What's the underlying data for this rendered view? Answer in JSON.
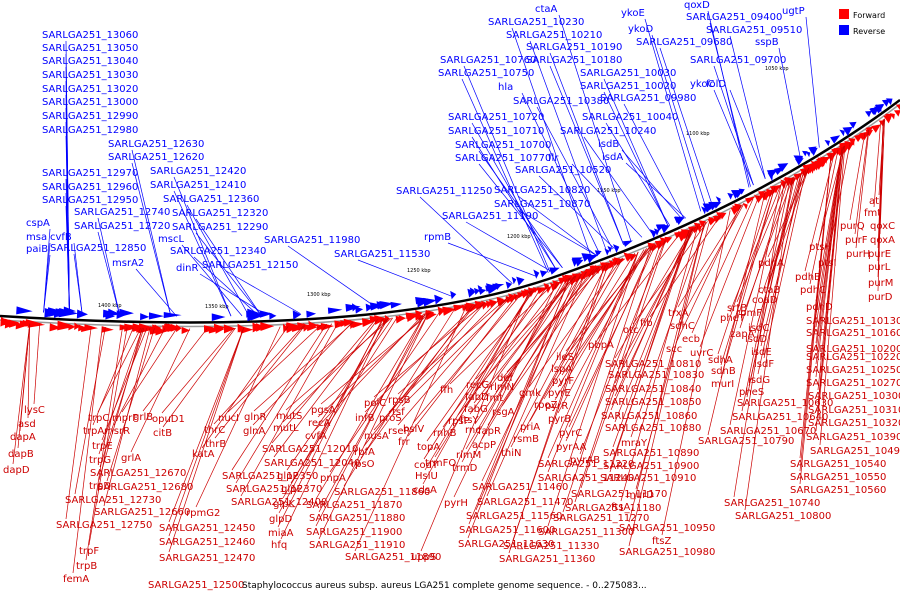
{
  "legend": {
    "forward": "Forward",
    "reverse": "Reverse"
  },
  "colors": {
    "forward": "#ff0000",
    "reverse": "#0000ff",
    "backbone": "#000000"
  },
  "caption": "Staphylococcus aureus subsp. aureus LGA251 complete genome sequence. - 0..275083...",
  "bottom_label": "SARLGA251_12500",
  "ticks": [
    "1400 kbp",
    "1350 kbp",
    "1300 kbp",
    "1250 kbp",
    "1200 kbp",
    "1150 kbp",
    "1100 kbp",
    "1050 kbp"
  ],
  "reverse_labels": [
    "SARLGA251_13060",
    "SARLGA251_13050",
    "SARLGA251_13040",
    "SARLGA251_13030",
    "SARLGA251_13020",
    "SARLGA251_13000",
    "SARLGA251_12990",
    "SARLGA251_12980",
    "SARLGA251_12630",
    "SARLGA251_12620",
    "SARLGA251_12970",
    "SARLGA251_12420",
    "SARLGA251_12960",
    "SARLGA251_12410",
    "SARLGA251_12950",
    "SARLGA251_12360",
    "SARLGA251_12740",
    "SARLGA251_12320",
    "SARLGA251_12720",
    "SARLGA251_12290",
    "cspA",
    "msa",
    "paiB",
    "cvfB",
    "SARLGA251_12850",
    "msrA2",
    "mscL",
    "SARLGA251_12340",
    "dinR",
    "SARLGA251_12150",
    "SARLGA251_11980",
    "SARLGA251_11530",
    "rpmB",
    "ctaA",
    "SARLGA251_10230",
    "SARLGA251_10210",
    "SARLGA251_10760",
    "SARLGA251_10190",
    "SARLGA251_10750",
    "SARLGA251_10180",
    "hla",
    "SARLGA251_10380",
    "SARLGA251_10030",
    "SARLGA251_10020",
    "SARLGA251_09980",
    "SARLGA251_10720",
    "SARLGA251_10710",
    "SARLGA251_10700",
    "SARLGA251_10770",
    "flr",
    "SARLGA251_10520",
    "SARLGA251_10040",
    "SARLGA251_10240",
    "isdB",
    "isdA",
    "SARLGA251_11250",
    "SARLGA251_10820",
    "SARLGA251_10870",
    "SARLGA251_11190",
    "ykoE",
    "qoxD",
    "SARLGA251_09400",
    "ugtP",
    "ykoD",
    "SARLGA251_09510",
    "SARLGA251_09680",
    "sspB",
    "SARLGA251_09700",
    "ykoC",
    "folD"
  ],
  "forward_labels": [
    "atl",
    "fmt",
    "purQ",
    "qoxC",
    "purF",
    "qoxA",
    "ptsH",
    "purH",
    "purE",
    "ptsI",
    "purL",
    "pdhA",
    "purM",
    "pdhB",
    "purD",
    "pdhC",
    "ctaB",
    "coaD",
    "pdhD",
    "srtB",
    "rpmF",
    "SARLGA251_10130",
    "SARLGA251_10160",
    "SARLGA251_10200",
    "SARLGA251_10220",
    "SARLGA251_10250",
    "SARLGA251_10270",
    "SARLGA251_10300",
    "SARLGA251_10310",
    "SARLGA251_10320",
    "SARLGA251_10390",
    "pheT",
    "isdC",
    "zapA",
    "isdE",
    "isdD",
    "isdF",
    "isdG",
    "pheS",
    "SARLGA251_10490",
    "SARLGA251_10540",
    "SARLGA251_10550",
    "SARLGA251_10560",
    "fib",
    "trxA",
    "otc",
    "sdhC",
    "ecb",
    "uvrC",
    "scc",
    "sdhA",
    "sdhB",
    "murI",
    "SARLGA251_10630",
    "SARLGA251_10640",
    "SARLGA251_10670",
    "SARLGA251_10790",
    "SARLGA251_10740",
    "SARLGA251_10800",
    "pbpA",
    "ileS",
    "lspA",
    "pyrF",
    "pyrE",
    "pyrR",
    "pyrB",
    "pyrC",
    "pyrAA",
    "pyrAB",
    "SARLGA251_10810",
    "SARLGA251_10830",
    "SARLGA251_10840",
    "SARLGA251_10850",
    "SARLGA251_10860",
    "SARLGA251_10880",
    "mraY",
    "SARLGA251_10890",
    "SARLGA251_10900",
    "SARLGA251_10910",
    "murD",
    "ftsA",
    "SARLGA251_10950",
    "ftsZ",
    "SARLGA251_10980",
    "def",
    "rlmN",
    "fmt",
    "gmk",
    "rpoZ",
    "priA",
    "rsmB",
    "thiN",
    "SARLGA251_11220",
    "SARLGA251_11240",
    "SARLGA251_11170",
    "SARLGA251_11180",
    "SARLGA251_11270",
    "SARLGA251_11300",
    "SARLGA251_11330",
    "SARLGA251_11360",
    "recG",
    "fabD",
    "fabG",
    "rsgA",
    "fapR",
    "acpP",
    "rnc",
    "ftsY",
    "ffh",
    "rpsP",
    "rimM",
    "trmD",
    "SARLGA251_11460",
    "SARLGA251_11470",
    "SARLGA251_11560",
    "SARLGA251_11600",
    "SARLGA251_11630",
    "rpsB",
    "tsf",
    "pyrH",
    "frr",
    "uppS",
    "cdsA",
    "rseP",
    "proS",
    "polC",
    "nusA",
    "rbfA",
    "infB",
    "rpsO",
    "rnhB",
    "hslV",
    "topA",
    "HslU",
    "codY",
    "trmFO",
    "lysC",
    "asd",
    "dapA",
    "dapB",
    "dapD",
    "trpC",
    "trpA",
    "trpE",
    "trpG",
    "trpD",
    "trpF",
    "trpB",
    "femA",
    "mprF",
    "msrR",
    "grlB",
    "grlA",
    "opuD1",
    "citB",
    "nucI",
    "thrC",
    "thrB",
    "katA",
    "SARLGA251_12670",
    "SARLGA251_12680",
    "SARLGA251_12730",
    "SARLGA251_12660",
    "SARLGA251_12750",
    "rpmG2",
    "SARLGA251_12450",
    "SARLGA251_12460",
    "SARLGA251_12470",
    "glnR",
    "glnA",
    "SARLGA251_12350",
    "SARLGA251_12370",
    "SARLGA251_12400",
    "mutS",
    "mutL",
    "glpP",
    "glpF",
    "glpK",
    "glpD",
    "miaA",
    "hfq",
    "pgsA",
    "recA",
    "cvfA",
    "SARLGA251_12010",
    "SARLGA251_12040",
    "pnpA",
    "SARLGA251_11860",
    "SARLGA251_11870",
    "SARLGA251_11880",
    "SARLGA251_11900",
    "SARLGA251_11910",
    "SARLGA251_11890"
  ]
}
